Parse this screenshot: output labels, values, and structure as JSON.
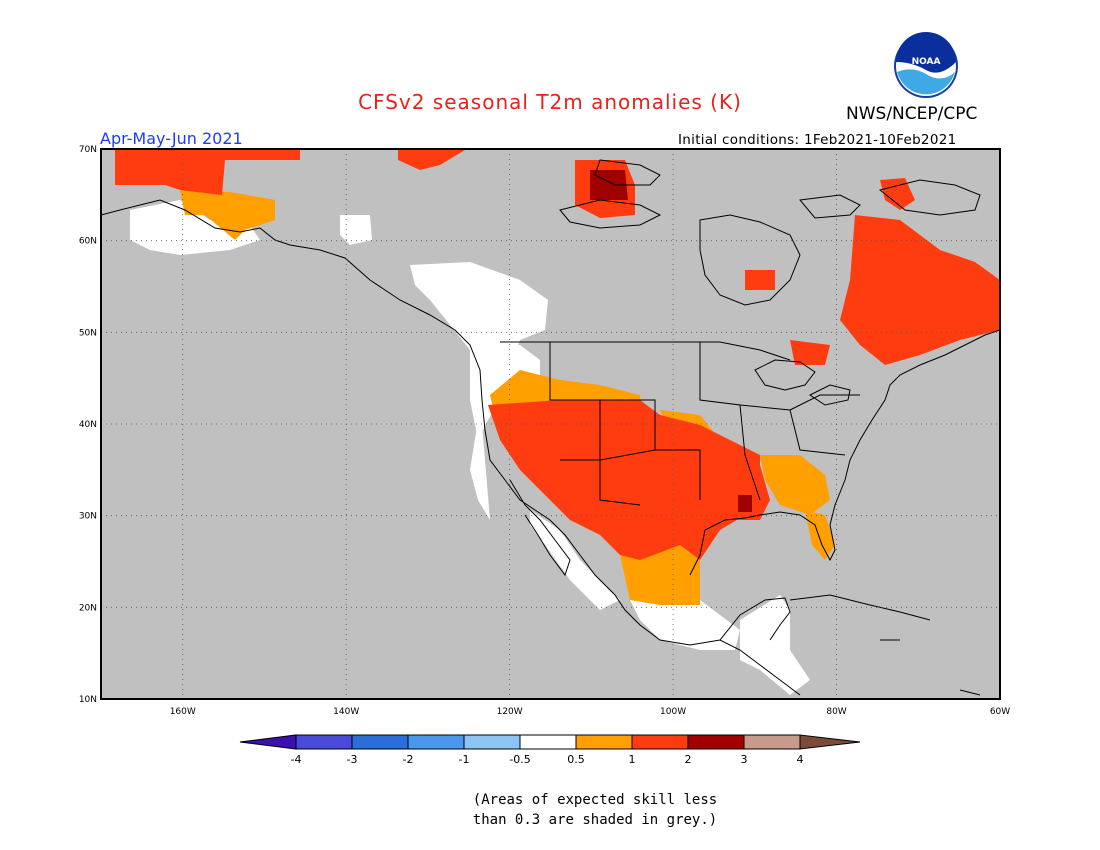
{
  "title": "CFSv2 seasonal T2m anomalies (K)",
  "organization": "NWS/NCEP/CPC",
  "logo_text": "NOAA",
  "period": "Apr-May-Jun 2021",
  "initial_conditions": "Initial conditions: 1Feb2021-10Feb2021",
  "latitude_labels": [
    "70N",
    "60N",
    "50N",
    "40N",
    "30N",
    "20N",
    "10N"
  ],
  "longitude_labels": [
    "160W",
    "140W",
    "120W",
    "100W",
    "80W",
    "60W"
  ],
  "colorbar": {
    "ticks": [
      "-4",
      "-3",
      "-2",
      "-1",
      "-0.5",
      "0.5",
      "1",
      "2",
      "3",
      "4"
    ],
    "colors": [
      "#3a10b0",
      "#4a4ad8",
      "#2a6fd8",
      "#4a98ec",
      "#8cc4f4",
      "#ffffff",
      "#ff9f00",
      "#ff3c10",
      "#a00000",
      "#c79a8c",
      "#7a4a3a"
    ]
  },
  "colors": {
    "grey_background": "#c0c0c0",
    "anomaly_0_5_to_1": "#ff9f00",
    "anomaly_1_to_2": "#ff3c10",
    "anomaly_2_to_3": "#a00000",
    "anomaly_neutral": "#ffffff"
  },
  "note_line1": "(Areas of expected skill less",
  "note_line2": "than 0.3 are shaded in grey.)"
}
